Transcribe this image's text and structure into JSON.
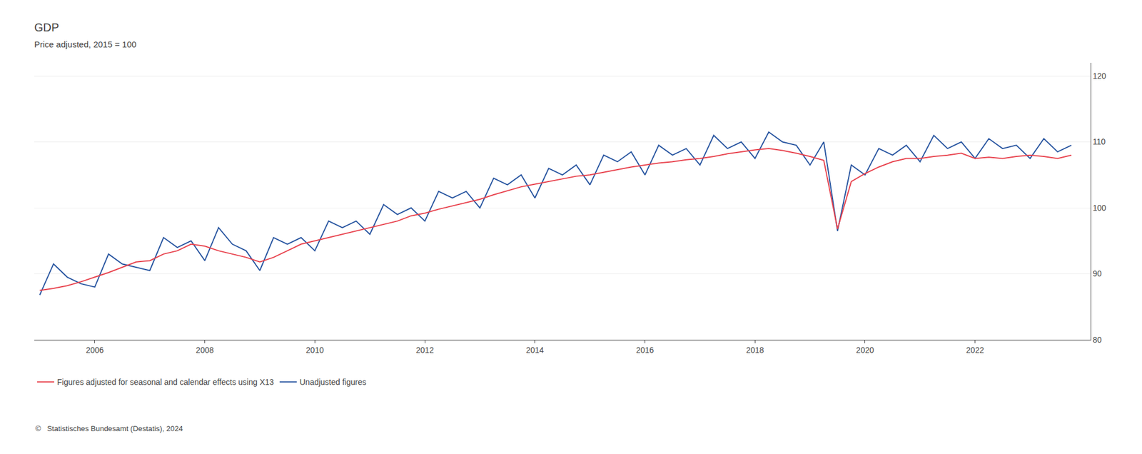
{
  "chart_data": {
    "type": "line",
    "title": "GDP",
    "subtitle": "Price adjusted, 2015 = 100",
    "annotations": [
      "©   Statistisches Bundesamt (Destatis), 2024"
    ],
    "x": [
      2005,
      2005.25,
      2005.5,
      2005.75,
      2006,
      2006.25,
      2006.5,
      2006.75,
      2007,
      2007.25,
      2007.5,
      2007.75,
      2008,
      2008.25,
      2008.5,
      2008.75,
      2009,
      2009.25,
      2009.5,
      2009.75,
      2010,
      2010.25,
      2010.5,
      2010.75,
      2011,
      2011.25,
      2011.5,
      2011.75,
      2012,
      2012.25,
      2012.5,
      2012.75,
      2013,
      2013.25,
      2013.5,
      2013.75,
      2014,
      2014.25,
      2014.5,
      2014.75,
      2015,
      2015.25,
      2015.5,
      2015.75,
      2016,
      2016.25,
      2016.5,
      2016.75,
      2017,
      2017.25,
      2017.5,
      2017.75,
      2018,
      2018.25,
      2018.5,
      2018.75,
      2019,
      2019.25,
      2019.5,
      2019.75,
      2020,
      2020.25,
      2020.5,
      2020.75,
      2021,
      2021.25,
      2021.5,
      2021.75,
      2022,
      2022.25,
      2022.5,
      2022.75,
      2023,
      2023.25,
      2023.5,
      2023.75
    ],
    "series": [
      {
        "name": "Unadjusted figures",
        "color": "#2855a0",
        "values": [
          86.8,
          91.5,
          89.5,
          88.5,
          88.0,
          93.0,
          91.5,
          91.0,
          90.5,
          95.5,
          94.0,
          95.0,
          92.0,
          97.0,
          94.5,
          93.5,
          90.5,
          95.5,
          94.5,
          95.5,
          93.5,
          98.0,
          97.0,
          98.0,
          96.0,
          100.5,
          99.0,
          100.0,
          98.0,
          102.5,
          101.5,
          102.5,
          100.0,
          104.5,
          103.5,
          105.0,
          101.5,
          106.0,
          105.0,
          106.5,
          103.5,
          108.0,
          107.0,
          108.5,
          105.0,
          109.5,
          108.0,
          109.0,
          106.5,
          111.0,
          109.0,
          110.0,
          107.5,
          111.5,
          110.0,
          109.5,
          106.5,
          110.0,
          96.5,
          106.5,
          105.0,
          109.0,
          108.0,
          109.5,
          107.0,
          111.0,
          109.0,
          110.0,
          107.5,
          110.5,
          109.0,
          109.5,
          107.5,
          110.5,
          108.5,
          109.5
        ]
      },
      {
        "name": "Figures adjusted for seasonal and calendar effects using X13",
        "color": "#e8434e",
        "values": [
          87.5,
          87.8,
          88.2,
          88.8,
          89.5,
          90.2,
          91.0,
          91.8,
          92.0,
          93.0,
          93.5,
          94.5,
          94.2,
          93.5,
          93.0,
          92.5,
          91.8,
          92.5,
          93.5,
          94.5,
          95.0,
          95.5,
          96.0,
          96.5,
          97.0,
          97.5,
          98.0,
          98.8,
          99.2,
          99.8,
          100.3,
          100.8,
          101.3,
          102.0,
          102.6,
          103.2,
          103.6,
          104.0,
          104.4,
          104.8,
          105.0,
          105.4,
          105.8,
          106.2,
          106.5,
          106.8,
          107.0,
          107.3,
          107.5,
          107.8,
          108.2,
          108.5,
          108.8,
          109.0,
          108.7,
          108.3,
          107.8,
          107.2,
          96.8,
          104.0,
          105.2,
          106.2,
          107.0,
          107.5,
          107.5,
          107.8,
          108.0,
          108.3,
          107.5,
          107.7,
          107.5,
          107.8,
          108.0,
          107.8,
          107.5,
          108.0
        ]
      }
    ],
    "xlim": [
      2004.9,
      2024.1
    ],
    "xticks": [
      2006,
      2008,
      2010,
      2012,
      2014,
      2016,
      2018,
      2020,
      2022
    ],
    "ylim": [
      80,
      122
    ],
    "yticks": [
      80,
      90,
      100,
      110,
      120
    ],
    "grid": true,
    "legend": "bottom"
  }
}
